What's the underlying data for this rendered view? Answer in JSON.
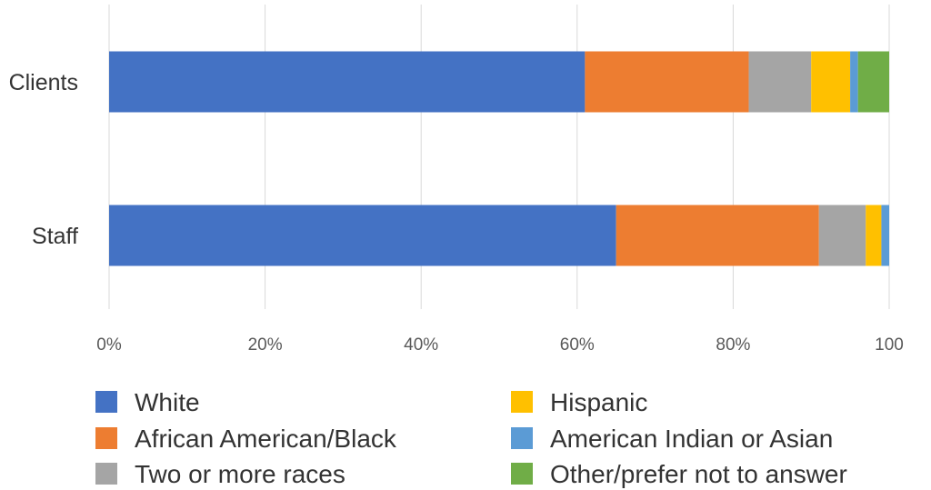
{
  "chart_data": {
    "type": "bar",
    "orientation": "horizontal",
    "stacked": true,
    "categories": [
      "Clients",
      "Staff"
    ],
    "series": [
      {
        "name": "White",
        "color": "#4472C4",
        "values": [
          61,
          65
        ]
      },
      {
        "name": "African American/Black",
        "color": "#ED7D31",
        "values": [
          21,
          26
        ]
      },
      {
        "name": "Two or more races",
        "color": "#A5A5A5",
        "values": [
          8,
          6
        ]
      },
      {
        "name": "Hispanic",
        "color": "#FFC000",
        "values": [
          5,
          2
        ]
      },
      {
        "name": "American Indian or Asian",
        "color": "#5B9BD5",
        "values": [
          1,
          1
        ]
      },
      {
        "name": "Other/prefer not to answer",
        "color": "#70AD47",
        "values": [
          4,
          0
        ]
      }
    ],
    "x_ticks": [
      "0%",
      "20%",
      "40%",
      "60%",
      "80%",
      "100"
    ],
    "xlim": [
      0,
      100
    ],
    "grid": true,
    "legend_position": "bottom",
    "legend_columns": 2
  }
}
